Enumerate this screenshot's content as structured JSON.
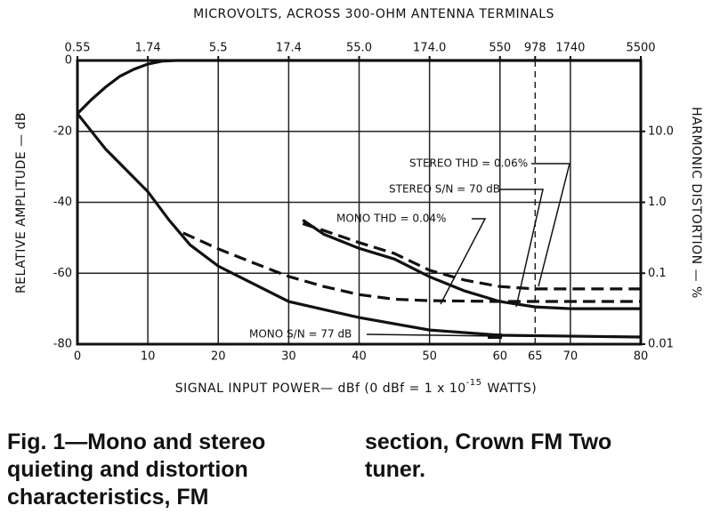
{
  "chart_data": {
    "type": "line",
    "title": "MICROVOLTS, ACROSS 300-OHM ANTENNA TERMINALS",
    "x_label": "SIGNAL INPUT POWER— dBf (0 dBf = 1 x 10",
    "x_label_exponent": "-15",
    "x_label_end": "WATTS)",
    "y_label": "RELATIVE AMPLITUDE — dB",
    "y2_label": "HARMONIC DISTORTION — %",
    "xlim": [
      0,
      80
    ],
    "xticks": [
      0,
      10,
      20,
      30,
      40,
      50,
      60,
      65,
      70,
      80
    ],
    "x2lim": [
      0.55,
      5500
    ],
    "x2scale": "log",
    "x2ticks": [
      0.55,
      1.74,
      5.5,
      17.4,
      {
        "value": 55,
        "label": "55.0"
      },
      {
        "value": 174,
        "label": "174.0"
      },
      550,
      978,
      1740,
      5500
    ],
    "ylim": [
      -80,
      0
    ],
    "yticks": [
      0,
      -20,
      -40,
      -60,
      -80
    ],
    "y2lim": [
      0.01,
      100
    ],
    "y2scale": "log",
    "y2ticks": [
      {
        "value": 10,
        "label": "10.0"
      },
      {
        "value": 1,
        "label": "1.0"
      },
      0.1,
      0.01
    ],
    "grid": true,
    "color": "#111111",
    "series": [
      {
        "style": "solid",
        "x": [
          0,
          2,
          4,
          6,
          8,
          10,
          12,
          14,
          80
        ],
        "values": [
          -15,
          -11,
          -7.5,
          -4.5,
          -2.5,
          -1,
          -0.2,
          0,
          0
        ]
      },
      {
        "style": "solid",
        "x": [
          0,
          4,
          10,
          13,
          16,
          20,
          25,
          30,
          40,
          50,
          60,
          80
        ],
        "values": [
          -15,
          -25,
          -37,
          -45,
          -52,
          -58,
          -63,
          -68,
          -72.5,
          -76,
          -77.5,
          -78
        ]
      },
      {
        "style": "dashed",
        "axis": "y2",
        "x": [
          15,
          20,
          25,
          30,
          35,
          40,
          45,
          50,
          60,
          80
        ],
        "values": [
          0.37,
          0.22,
          0.14,
          0.09,
          0.065,
          0.05,
          0.043,
          0.041,
          0.04,
          0.04
        ]
      },
      {
        "style": "solid",
        "x": [
          32,
          35,
          40,
          45,
          50,
          55,
          60,
          65,
          70,
          80
        ],
        "values": [
          -45,
          -49,
          -53,
          -56,
          -61,
          -65,
          -68,
          -69.5,
          -70,
          -70
        ]
      },
      {
        "style": "dashed",
        "axis": "y2",
        "x": [
          32,
          35,
          40,
          45,
          50,
          55,
          60,
          65,
          70,
          80
        ],
        "values": [
          0.5,
          0.4,
          0.27,
          0.19,
          0.11,
          0.08,
          0.065,
          0.06,
          0.06,
          0.06
        ]
      }
    ],
    "annotations": [
      "STEREO THD = 0.06%",
      "STEREO S/N = 70 dB",
      "MONO THD = 0.04%",
      "MONO S/N = 77 dB"
    ],
    "caption_lines": [
      "Fig. 1—Mono and stereo",
      "quieting and distortion",
      "characteristics, FM",
      "section, Crown FM Two",
      "tuner."
    ]
  }
}
